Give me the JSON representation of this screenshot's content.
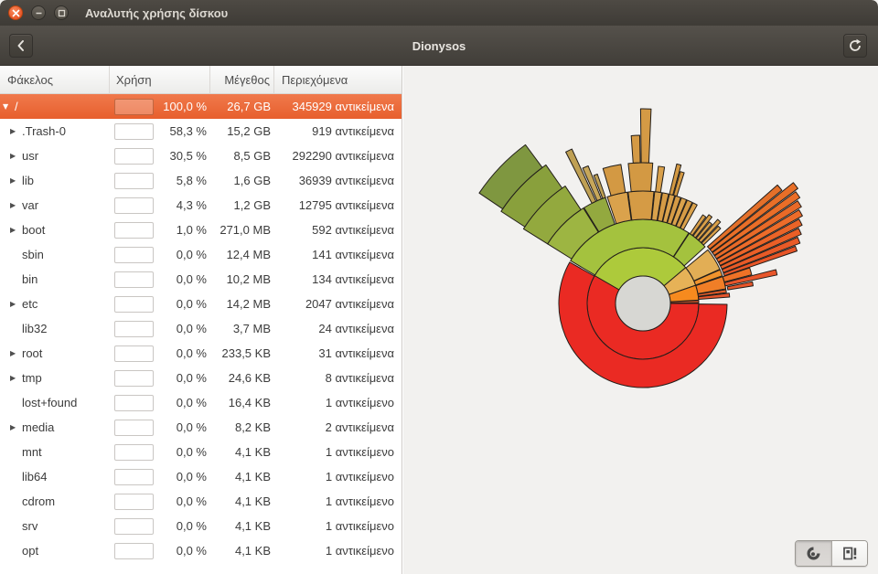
{
  "window": {
    "title": "Αναλυτής χρήσης δίσκου"
  },
  "headerbar": {
    "location_title": "Dionysos"
  },
  "table": {
    "columns": [
      "Φάκελος",
      "Χρήση",
      "Μέγεθος",
      "Περιεχόμενα"
    ],
    "rows": [
      {
        "name": "/",
        "expander": "open",
        "top": true,
        "selected": true,
        "usage": "100,0 %",
        "size": "26,7 GB",
        "contents": "345929 αντικείμενα"
      },
      {
        "name": ".Trash-0",
        "expander": "closed",
        "top": false,
        "selected": false,
        "usage": "58,3 %",
        "size": "15,2 GB",
        "contents": "919 αντικείμενα"
      },
      {
        "name": "usr",
        "expander": "closed",
        "top": false,
        "selected": false,
        "usage": "30,5 %",
        "size": "8,5 GB",
        "contents": "292290 αντικείμενα"
      },
      {
        "name": "lib",
        "expander": "closed",
        "top": false,
        "selected": false,
        "usage": "5,8 %",
        "size": "1,6 GB",
        "contents": "36939 αντικείμενα"
      },
      {
        "name": "var",
        "expander": "closed",
        "top": false,
        "selected": false,
        "usage": "4,3 %",
        "size": "1,2 GB",
        "contents": "12795 αντικείμενα"
      },
      {
        "name": "boot",
        "expander": "closed",
        "top": false,
        "selected": false,
        "usage": "1,0 %",
        "size": "271,0 MB",
        "contents": "592 αντικείμενα"
      },
      {
        "name": "sbin",
        "expander": null,
        "top": false,
        "selected": false,
        "usage": "0,0 %",
        "size": "12,4 MB",
        "contents": "141 αντικείμενα"
      },
      {
        "name": "bin",
        "expander": null,
        "top": false,
        "selected": false,
        "usage": "0,0 %",
        "size": "10,2 MB",
        "contents": "134 αντικείμενα"
      },
      {
        "name": "etc",
        "expander": "closed",
        "top": false,
        "selected": false,
        "usage": "0,0 %",
        "size": "14,2 MB",
        "contents": "2047 αντικείμενα"
      },
      {
        "name": "lib32",
        "expander": null,
        "top": false,
        "selected": false,
        "usage": "0,0 %",
        "size": "3,7 MB",
        "contents": "24 αντικείμενα"
      },
      {
        "name": "root",
        "expander": "closed",
        "top": false,
        "selected": false,
        "usage": "0,0 %",
        "size": "233,5 KB",
        "contents": "31 αντικείμενα"
      },
      {
        "name": "tmp",
        "expander": "closed",
        "top": false,
        "selected": false,
        "usage": "0,0 %",
        "size": "24,6 KB",
        "contents": "8 αντικείμενα"
      },
      {
        "name": "lost+found",
        "expander": null,
        "top": false,
        "selected": false,
        "usage": "0,0 %",
        "size": "16,4 KB",
        "contents": "1 αντικείμενο"
      },
      {
        "name": "media",
        "expander": "closed",
        "top": false,
        "selected": false,
        "usage": "0,0 %",
        "size": "8,2 KB",
        "contents": "2 αντικείμενα"
      },
      {
        "name": "mnt",
        "expander": null,
        "top": false,
        "selected": false,
        "usage": "0,0 %",
        "size": "4,1 KB",
        "contents": "1 αντικείμενο"
      },
      {
        "name": "lib64",
        "expander": null,
        "top": false,
        "selected": false,
        "usage": "0,0 %",
        "size": "4,1 KB",
        "contents": "1 αντικείμενο"
      },
      {
        "name": "cdrom",
        "expander": null,
        "top": false,
        "selected": false,
        "usage": "0,0 %",
        "size": "4,1 KB",
        "contents": "1 αντικείμενο"
      },
      {
        "name": "srv",
        "expander": null,
        "top": false,
        "selected": false,
        "usage": "0,0 %",
        "size": "4,1 KB",
        "contents": "1 αντικείμενο"
      },
      {
        "name": "opt",
        "expander": null,
        "top": false,
        "selected": false,
        "usage": "0,0 %",
        "size": "4,1 KB",
        "contents": "1 αντικείμενο"
      }
    ]
  },
  "chart_data": {
    "type": "sunburst-rings",
    "root": "/",
    "total_size": "26,7 GB",
    "first_ring_shares": {
      ".Trash-0": 58.3,
      "usr": 30.5,
      "lib": 5.8,
      "var": 4.3,
      "boot": 1.0
    },
    "center_color": "#d7d7d3",
    "outline_color": "#221e1a",
    "segments": [
      {
        "r0": 30,
        "r1": 61,
        "a0": 0,
        "a1": 210,
        "c": "#ea2a23"
      },
      {
        "r0": 30,
        "r1": 61,
        "a0": 210,
        "a1": 320,
        "c": "#adca3b"
      },
      {
        "r0": 30,
        "r1": 61,
        "a0": 320,
        "a1": 341,
        "c": "#e6b257"
      },
      {
        "r0": 30,
        "r1": 61,
        "a0": 341,
        "a1": 356.5,
        "c": "#f68a1e"
      },
      {
        "r0": 30,
        "r1": 61,
        "a0": 356.9,
        "a1": 359.3,
        "c": "#dd572b"
      },
      {
        "r0": 61,
        "r1": 92,
        "a0": 0.6,
        "a1": 209.4,
        "c": "#ea2a23"
      },
      {
        "r0": 61,
        "r1": 92,
        "a0": 210.6,
        "a1": 303,
        "c": "#a4c23e"
      },
      {
        "r0": 61,
        "r1": 92,
        "a0": 303.4,
        "a1": 317.6,
        "c": "#a4c23e"
      },
      {
        "r0": 61,
        "r1": 92,
        "a0": 320.4,
        "a1": 336,
        "c": "#e2ae55"
      },
      {
        "r0": 61,
        "r1": 92,
        "a0": 336.4,
        "a1": 340.8,
        "c": "#f0932d"
      },
      {
        "r0": 61,
        "r1": 92,
        "a0": 341.4,
        "a1": 350,
        "c": "#f07e27"
      },
      {
        "r0": 61,
        "r1": 92,
        "a0": 350.5,
        "a1": 352.6,
        "c": "#e95e2a"
      },
      {
        "r0": 61,
        "r1": 95,
        "a0": 353.2,
        "a1": 355.8,
        "c": "#e4552c"
      },
      {
        "r0": 92,
        "r1": 150,
        "a0": 345.7,
        "a1": 348,
        "c": "#e8562b"
      },
      {
        "r0": 94,
        "r1": 122,
        "a0": 348.8,
        "a1": 350.9,
        "c": "#e8562b"
      },
      {
        "r0": 92,
        "r1": 123,
        "a0": 341.5,
        "a1": 345.2,
        "c": "#ee7227"
      },
      {
        "r0": 92,
        "r1": 123,
        "a0": 212,
        "a1": 238,
        "c": "#9db542"
      },
      {
        "r0": 92,
        "r1": 123,
        "a0": 238.4,
        "a1": 250.5,
        "c": "#93a93f"
      },
      {
        "r0": 92,
        "r1": 123,
        "a0": 251.5,
        "a1": 262,
        "c": "#daa24c"
      },
      {
        "r0": 92,
        "r1": 123,
        "a0": 262.4,
        "a1": 275.6,
        "c": "#d59b45"
      },
      {
        "r0": 92,
        "r1": 123,
        "a0": 276,
        "a1": 279.6,
        "c": "#daa24c"
      },
      {
        "r0": 92,
        "r1": 123,
        "a0": 280,
        "a1": 283.2,
        "c": "#d59b45"
      },
      {
        "r0": 92,
        "r1": 123,
        "a0": 283.6,
        "a1": 286.4,
        "c": "#daa24c"
      },
      {
        "r0": 92,
        "r1": 123,
        "a0": 286.8,
        "a1": 289.6,
        "c": "#d59b45"
      },
      {
        "r0": 92,
        "r1": 123,
        "a0": 290,
        "a1": 292.8,
        "c": "#daa24c"
      },
      {
        "r0": 92,
        "r1": 123,
        "a0": 293.2,
        "a1": 296,
        "c": "#d59b45"
      },
      {
        "r0": 92,
        "r1": 123,
        "a0": 296.4,
        "a1": 298.8,
        "c": "#daa24c"
      },
      {
        "r0": 92,
        "r1": 117,
        "a0": 304,
        "a1": 306,
        "c": "#d9a04a"
      },
      {
        "r0": 92,
        "r1": 121,
        "a0": 306.6,
        "a1": 308.6,
        "c": "#d9a04a"
      },
      {
        "r0": 92,
        "r1": 115,
        "a0": 309.2,
        "a1": 311,
        "c": "#d9a04a"
      },
      {
        "r0": 92,
        "r1": 123,
        "a0": 311.6,
        "a1": 313.6,
        "c": "#d9a04a"
      },
      {
        "r0": 92,
        "r1": 118,
        "a0": 314.2,
        "a1": 316,
        "c": "#d9a04a"
      },
      {
        "r0": 94,
        "r1": 196,
        "a0": 318.6,
        "a1": 320.8,
        "c": "#e4702a"
      },
      {
        "r0": 94,
        "r1": 211,
        "a0": 321.2,
        "a1": 323.4,
        "c": "#e86f28"
      },
      {
        "r0": 94,
        "r1": 207,
        "a0": 323.8,
        "a1": 326,
        "c": "#ea6e28"
      },
      {
        "r0": 94,
        "r1": 203,
        "a0": 326.4,
        "a1": 328.6,
        "c": "#e86a28"
      },
      {
        "r0": 94,
        "r1": 199,
        "a0": 329,
        "a1": 331.2,
        "c": "#ed6c2a"
      },
      {
        "r0": 94,
        "r1": 194,
        "a0": 331.6,
        "a1": 333.8,
        "c": "#ea6428"
      },
      {
        "r0": 94,
        "r1": 189,
        "a0": 334.2,
        "a1": 336.4,
        "c": "#ea5f27"
      },
      {
        "r0": 94,
        "r1": 184,
        "a0": 336.8,
        "a1": 339,
        "c": "#e85a27"
      },
      {
        "r0": 94,
        "r1": 178,
        "a0": 339.4,
        "a1": 341.2,
        "c": "#e85527"
      },
      {
        "r0": 123,
        "r1": 154,
        "a0": 212,
        "a1": 236.5,
        "c": "#93a93e"
      },
      {
        "r0": 123,
        "r1": 186,
        "a0": 243,
        "a1": 245.3,
        "c": "#bfa054"
      },
      {
        "r0": 123,
        "r1": 162,
        "a0": 246,
        "a1": 248.3,
        "c": "#c7a75a"
      },
      {
        "r0": 123,
        "r1": 150,
        "a0": 249,
        "a1": 250.6,
        "c": "#bfa054"
      },
      {
        "r0": 123,
        "r1": 154,
        "a0": 253.5,
        "a1": 261,
        "c": "#d39943"
      },
      {
        "r0": 123,
        "r1": 154,
        "a0": 264,
        "a1": 274,
        "c": "#d39943"
      },
      {
        "r0": 123,
        "r1": 151,
        "a0": 276.4,
        "a1": 279,
        "c": "#d9a04a"
      },
      {
        "r0": 123,
        "r1": 157,
        "a0": 283.6,
        "a1": 285.4,
        "c": "#d39943"
      },
      {
        "r0": 123,
        "r1": 150,
        "a0": 285.8,
        "a1": 287.5,
        "c": "#d39943"
      },
      {
        "r0": 154,
        "r1": 185,
        "a0": 213,
        "a1": 235,
        "c": "#89a03c"
      },
      {
        "r0": 154,
        "r1": 184,
        "a0": 266,
        "a1": 268.9,
        "c": "#d49a45"
      },
      {
        "r0": 154,
        "r1": 213,
        "a0": 269.3,
        "a1": 272.4,
        "c": "#d49a45"
      },
      {
        "r0": 185,
        "r1": 216,
        "a0": 214,
        "a1": 233.5,
        "c": "#7f9740"
      }
    ]
  },
  "view_toggle": {
    "active": "rings",
    "options": [
      "rings-chart",
      "treemap-chart"
    ]
  },
  "colors": {
    "selection": "#e75f2d",
    "titlebar": "#433f3a",
    "chart_bg": "#f2f1ef"
  }
}
